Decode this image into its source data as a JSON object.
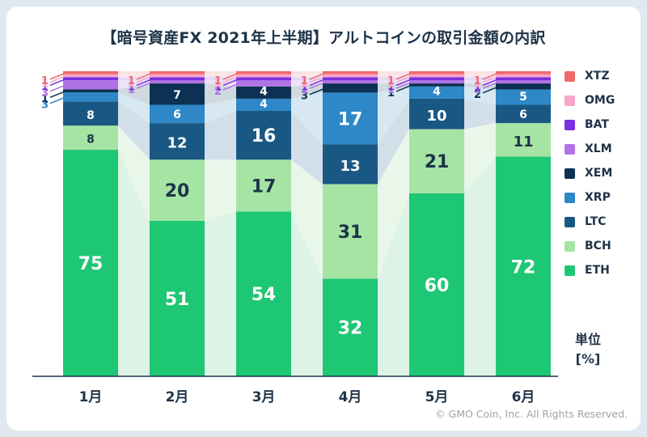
{
  "title": "【暗号資産FX 2021年上半期】アルトコインの取引金額の内訳",
  "unit_label_line1": "単位",
  "unit_label_line2": "[%]",
  "copyright": "© GMO Coin, Inc. All Rights Reserved.",
  "colors": {
    "ETH": "#1ec774",
    "BCH": "#a6e4a4",
    "LTC": "#1a5884",
    "XRP": "#2e87c6",
    "XEM": "#0c3152",
    "XLM": "#b173e3",
    "BAT": "#7b2fe0",
    "OMG": "#f6a6c9",
    "XTZ": "#f06a6a"
  },
  "chart_data": {
    "type": "bar",
    "stacked": true,
    "categories": [
      "1月",
      "2月",
      "3月",
      "4月",
      "5月",
      "6月"
    ],
    "ylim": [
      0,
      100
    ],
    "unit": "%",
    "legend_position": "right",
    "series": [
      {
        "name": "ETH",
        "values": [
          75,
          51,
          54,
          32,
          60,
          72
        ]
      },
      {
        "name": "BCH",
        "values": [
          8,
          20,
          17,
          31,
          21,
          11
        ]
      },
      {
        "name": "LTC",
        "values": [
          8,
          12,
          16,
          13,
          10,
          6
        ]
      },
      {
        "name": "XRP",
        "values": [
          3,
          6,
          4,
          17,
          4,
          5
        ]
      },
      {
        "name": "XEM",
        "values": [
          1,
          7,
          4,
          3,
          1,
          2
        ]
      },
      {
        "name": "XLM",
        "values": [
          3,
          1,
          2,
          1,
          1,
          1
        ]
      },
      {
        "name": "BAT",
        "values": [
          1,
          1,
          1,
          1,
          1,
          1
        ]
      },
      {
        "name": "OMG",
        "values": [
          1,
          1,
          1,
          1,
          1,
          1
        ]
      },
      {
        "name": "XTZ",
        "values": [
          1,
          1,
          1,
          1,
          1,
          1
        ]
      }
    ],
    "legend_order": [
      "XTZ",
      "OMG",
      "BAT",
      "XLM",
      "XEM",
      "XRP",
      "LTC",
      "BCH",
      "ETH"
    ]
  }
}
